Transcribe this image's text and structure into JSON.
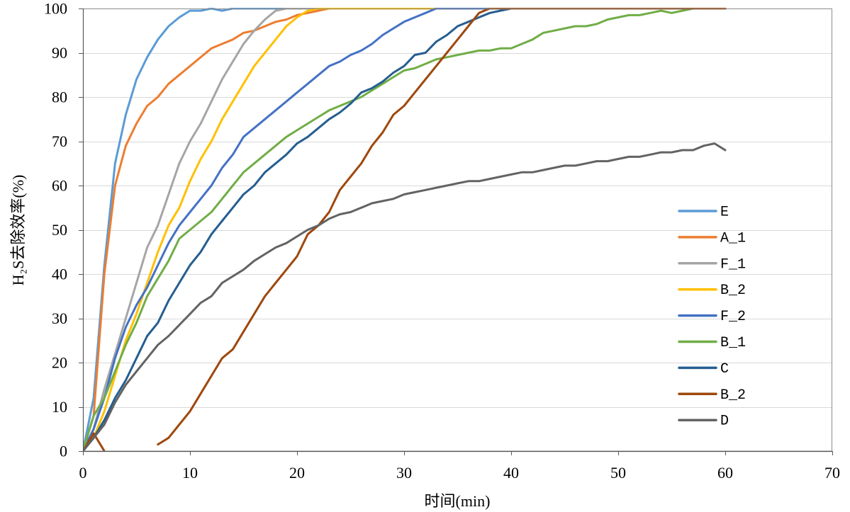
{
  "chart_data": {
    "type": "line",
    "xlabel": "时间(min)",
    "ylabel": "H₂S去除效率(%)",
    "xlim": [
      0,
      70
    ],
    "ylim": [
      0,
      100
    ],
    "xticks": [
      0,
      10,
      20,
      30,
      40,
      50,
      60,
      70
    ],
    "yticks": [
      0,
      10,
      20,
      30,
      40,
      50,
      60,
      70,
      80,
      90,
      100
    ],
    "grid": true,
    "legend_position": "bottom-right",
    "x": [
      0,
      1,
      2,
      3,
      4,
      5,
      6,
      7,
      8,
      9,
      10,
      11,
      12,
      13,
      14,
      15,
      16,
      17,
      18,
      19,
      20,
      21,
      22,
      23,
      24,
      25,
      26,
      27,
      28,
      29,
      30,
      31,
      32,
      33,
      34,
      35,
      36,
      37,
      38,
      39,
      40,
      41,
      42,
      43,
      44,
      45,
      46,
      47,
      48,
      49,
      50,
      51,
      52,
      53,
      54,
      55,
      56,
      57,
      58,
      59,
      60
    ],
    "series": [
      {
        "name": "E",
        "color": "#5B9BD5",
        "values": [
          0,
          12,
          42,
          65,
          76,
          84,
          89,
          93,
          96,
          98,
          99.5,
          99.5,
          100,
          99.5,
          100,
          100,
          100,
          100,
          100,
          100,
          100,
          100,
          100,
          100,
          100,
          100,
          100,
          100,
          100,
          100,
          100,
          100,
          100,
          100,
          100,
          100,
          100,
          100,
          100,
          100,
          100,
          100,
          100,
          100,
          100,
          100,
          100,
          100,
          100,
          100,
          100,
          100,
          100,
          100,
          100,
          100,
          100,
          100,
          100,
          100,
          100
        ]
      },
      {
        "name": "A_1",
        "color": "#ED7D31",
        "values": [
          0,
          8,
          40,
          60,
          69,
          74,
          78,
          80,
          83,
          85,
          87,
          89,
          91,
          92,
          93,
          94.5,
          95,
          96,
          97,
          97.5,
          98.5,
          99,
          99.5,
          100,
          100,
          100,
          100,
          100,
          100,
          100,
          100,
          100,
          100,
          100,
          100,
          100,
          100,
          100,
          100,
          100,
          100,
          100,
          100,
          100,
          100,
          100,
          100,
          100,
          100,
          100,
          100,
          100,
          100,
          100,
          100,
          100,
          100,
          100,
          100,
          100,
          100
        ]
      },
      {
        "name": "F_1",
        "color": "#A5A5A5",
        "values": [
          0,
          5,
          14,
          22,
          30,
          38,
          46,
          51,
          58,
          65,
          70,
          74,
          79,
          84,
          88,
          92,
          95,
          97.5,
          99.5,
          100,
          100,
          100,
          100,
          100,
          100,
          100,
          100,
          100,
          100,
          100,
          100,
          100,
          100,
          100,
          100,
          100,
          100,
          100,
          100,
          100,
          100,
          100,
          100,
          100,
          100,
          100,
          100,
          100,
          100,
          100,
          100,
          100,
          100,
          100,
          100,
          100,
          100,
          100,
          100,
          100,
          100
        ]
      },
      {
        "name": "B_2",
        "color": "#FFC000",
        "values": [
          0,
          3,
          9,
          17,
          25,
          31,
          38,
          45,
          51,
          55,
          61,
          66,
          70,
          75,
          79,
          83,
          87,
          90,
          93,
          96,
          98,
          99.5,
          100,
          100,
          100,
          100,
          100,
          100,
          100,
          100,
          100,
          100,
          100,
          100,
          100,
          100,
          100,
          100,
          100,
          100,
          100,
          100,
          100,
          100,
          100,
          100,
          100,
          100,
          100,
          100,
          100,
          100,
          100,
          100,
          100,
          100,
          100,
          100,
          100,
          100,
          100
        ]
      },
      {
        "name": "F_2",
        "color": "#4472C4",
        "values": [
          0,
          5,
          12,
          21,
          28,
          33,
          37,
          42,
          47,
          51,
          54,
          57,
          60,
          64,
          67,
          71,
          73,
          75,
          77,
          79,
          81,
          83,
          85,
          87,
          88,
          89.5,
          90.5,
          92,
          94,
          95.5,
          97,
          98,
          99,
          100,
          100,
          100,
          100,
          100,
          100,
          100,
          100,
          100,
          100,
          100,
          100,
          100,
          100,
          100,
          100,
          100,
          100,
          100,
          100,
          100,
          100,
          100,
          100,
          100,
          100,
          100,
          100
        ]
      },
      {
        "name": "B_1",
        "color": "#70AD47",
        "values": [
          0,
          8,
          12,
          18,
          24,
          29,
          35,
          39,
          43,
          48,
          50,
          52,
          54,
          57,
          60,
          63,
          65,
          67,
          69,
          71,
          72.5,
          74,
          75.5,
          77,
          78,
          79,
          80,
          81.5,
          83,
          84.5,
          86,
          86.5,
          87.5,
          88.5,
          89,
          89.5,
          90,
          90.5,
          90.5,
          91,
          91,
          92,
          93,
          94.5,
          95,
          95.5,
          96,
          96,
          96.5,
          97.5,
          98,
          98.5,
          98.5,
          99,
          99.5,
          99,
          99.5,
          100,
          100,
          100,
          100
        ]
      },
      {
        "name": "C",
        "color": "#255E91",
        "values": [
          0,
          3,
          7,
          12,
          16,
          21,
          26,
          29,
          34,
          38,
          42,
          45,
          49,
          52,
          55,
          58,
          60,
          63,
          65,
          67,
          69.5,
          71,
          73,
          75,
          76.5,
          78.5,
          81,
          82,
          83.5,
          85.5,
          87,
          89.5,
          90,
          92.5,
          94,
          96,
          97,
          98,
          99,
          99.5,
          100,
          100,
          100,
          100,
          100,
          100,
          100,
          100,
          100,
          100,
          100,
          100,
          100,
          100,
          100,
          100,
          100,
          100,
          100,
          100,
          100
        ]
      },
      {
        "name": "B_2",
        "color": "#9E480E",
        "values": [
          0,
          4,
          0,
          null,
          null,
          null,
          null,
          1.5,
          3,
          6,
          9,
          13,
          17,
          21,
          23,
          27,
          31,
          35,
          38,
          41,
          44,
          49,
          51,
          54,
          59,
          62,
          65,
          69,
          72,
          76,
          78,
          81,
          84,
          87,
          90,
          93,
          96,
          99,
          100,
          100,
          100,
          100,
          100,
          100,
          100,
          100,
          100,
          100,
          100,
          100,
          100,
          100,
          100,
          100,
          100,
          100,
          100,
          100,
          100,
          100,
          100
        ]
      },
      {
        "name": "D",
        "color": "#636363",
        "values": [
          0,
          3,
          6,
          11,
          15,
          18,
          21,
          24,
          26,
          28.5,
          31,
          33.5,
          35,
          38,
          39.5,
          41,
          43,
          44.5,
          46,
          47,
          48.5,
          50,
          51,
          52.5,
          53.5,
          54,
          55,
          56,
          56.5,
          57,
          58,
          58.5,
          59,
          59.5,
          60,
          60.5,
          61,
          61,
          61.5,
          62,
          62.5,
          63,
          63,
          63.5,
          64,
          64.5,
          64.5,
          65,
          65.5,
          65.5,
          66,
          66.5,
          66.5,
          67,
          67.5,
          67.5,
          68,
          68,
          69,
          69.5,
          68
        ]
      }
    ]
  }
}
